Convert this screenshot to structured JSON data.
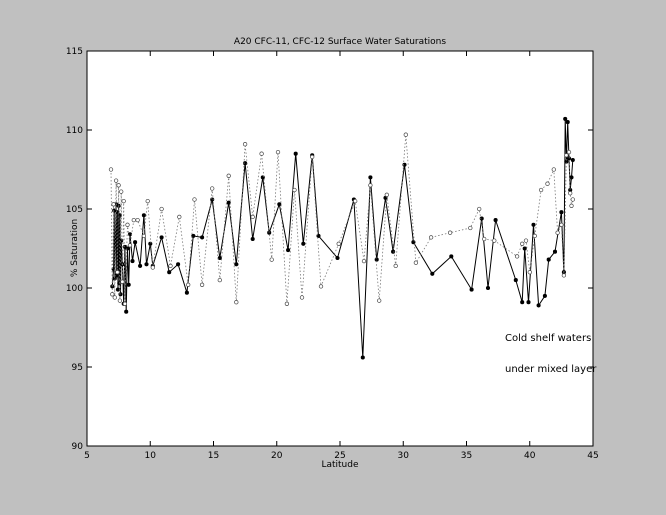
{
  "chart_data": {
    "type": "line",
    "title": "A20 CFC-11, CFC-12 Surface Water Saturations",
    "xlabel": "Latitude",
    "ylabel": "% Saturation",
    "xlim": [
      5,
      45
    ],
    "ylim": [
      90,
      115
    ],
    "xticks": [
      5,
      10,
      15,
      20,
      25,
      30,
      35,
      40,
      45
    ],
    "yticks": [
      90,
      95,
      100,
      105,
      110,
      115
    ],
    "grid": false,
    "annotations": [
      "Cold shelf waters",
      "under mixed layer"
    ],
    "colors": {
      "background": "#c0c0c0",
      "plot_area": "#ffffff",
      "series_cfc11": "#000000",
      "series_cfc12": "#777777"
    },
    "series": [
      {
        "style": "solid-filled-dots",
        "points": [
          [
            7.0,
            100.1
          ],
          [
            7.1,
            101.2
          ],
          [
            7.15,
            104.9
          ],
          [
            7.2,
            100.6
          ],
          [
            7.3,
            105.3
          ],
          [
            7.35,
            100.8
          ],
          [
            7.4,
            104.8
          ],
          [
            7.45,
            99.9
          ],
          [
            7.5,
            105.2
          ],
          [
            7.55,
            100.3
          ],
          [
            7.6,
            104.6
          ],
          [
            7.65,
            99.6
          ],
          [
            7.7,
            103.0
          ],
          [
            7.8,
            101.5
          ],
          [
            7.9,
            99.0
          ],
          [
            8.0,
            102.6
          ],
          [
            8.1,
            98.5
          ],
          [
            8.2,
            102.5
          ],
          [
            8.3,
            100.2
          ],
          [
            8.4,
            103.4
          ],
          [
            8.6,
            101.7
          ],
          [
            8.8,
            102.9
          ],
          [
            9.2,
            101.4
          ],
          [
            9.5,
            104.6
          ],
          [
            9.7,
            101.5
          ],
          [
            10.0,
            102.8
          ],
          [
            10.2,
            101.4
          ],
          [
            10.9,
            103.2
          ],
          [
            11.5,
            101.0
          ],
          [
            12.2,
            101.5
          ],
          [
            12.9,
            99.7
          ],
          [
            13.4,
            103.3
          ],
          [
            14.1,
            103.2
          ],
          [
            14.9,
            105.6
          ],
          [
            15.5,
            101.9
          ],
          [
            16.2,
            105.4
          ],
          [
            16.8,
            101.5
          ],
          [
            17.5,
            107.9
          ],
          [
            18.1,
            103.1
          ],
          [
            18.9,
            107.0
          ],
          [
            19.4,
            103.5
          ],
          [
            20.2,
            105.3
          ],
          [
            20.9,
            102.4
          ],
          [
            21.5,
            108.5
          ],
          [
            22.1,
            102.8
          ],
          [
            22.8,
            108.4
          ],
          [
            23.3,
            103.3
          ],
          [
            24.8,
            101.9
          ],
          [
            26.1,
            105.6
          ],
          [
            26.8,
            95.6
          ],
          [
            27.4,
            107.0
          ],
          [
            27.9,
            101.8
          ],
          [
            28.6,
            105.7
          ],
          [
            29.2,
            102.3
          ],
          [
            30.1,
            107.8
          ],
          [
            30.8,
            102.9
          ],
          [
            32.3,
            100.9
          ],
          [
            33.8,
            102.0
          ],
          [
            35.4,
            99.9
          ],
          [
            36.2,
            104.4
          ],
          [
            36.7,
            100.0
          ],
          [
            37.3,
            104.3
          ],
          [
            38.9,
            100.5
          ],
          [
            39.4,
            99.1
          ],
          [
            39.6,
            102.5
          ],
          [
            39.9,
            99.1
          ],
          [
            40.3,
            104.0
          ],
          [
            40.7,
            98.9
          ],
          [
            41.2,
            99.5
          ],
          [
            41.5,
            101.8
          ],
          [
            42.0,
            102.3
          ],
          [
            42.5,
            104.8
          ],
          [
            42.7,
            101.0
          ],
          [
            42.8,
            110.7
          ],
          [
            42.9,
            108.0
          ],
          [
            43.0,
            110.5
          ],
          [
            43.1,
            108.2
          ],
          [
            43.2,
            106.2
          ],
          [
            43.3,
            107.0
          ],
          [
            43.4,
            108.1
          ]
        ]
      },
      {
        "style": "dotted-open-circles",
        "points": [
          [
            6.9,
            107.5
          ],
          [
            7.0,
            99.6
          ],
          [
            7.1,
            105.3
          ],
          [
            7.2,
            99.4
          ],
          [
            7.3,
            106.8
          ],
          [
            7.4,
            101.0
          ],
          [
            7.5,
            106.5
          ],
          [
            7.6,
            99.2
          ],
          [
            7.7,
            106.1
          ],
          [
            7.8,
            100.4
          ],
          [
            7.9,
            105.5
          ],
          [
            8.0,
            99.0
          ],
          [
            8.2,
            104.0
          ],
          [
            8.4,
            102.7
          ],
          [
            8.7,
            104.3
          ],
          [
            9.0,
            104.3
          ],
          [
            9.5,
            103.3
          ],
          [
            9.8,
            105.5
          ],
          [
            10.2,
            101.3
          ],
          [
            10.9,
            105.0
          ],
          [
            11.6,
            101.4
          ],
          [
            12.3,
            104.5
          ],
          [
            13.0,
            100.2
          ],
          [
            13.5,
            105.6
          ],
          [
            14.1,
            100.2
          ],
          [
            14.9,
            106.3
          ],
          [
            15.5,
            100.5
          ],
          [
            16.2,
            107.1
          ],
          [
            16.8,
            99.1
          ],
          [
            17.5,
            109.1
          ],
          [
            18.1,
            104.5
          ],
          [
            18.8,
            108.5
          ],
          [
            19.6,
            101.8
          ],
          [
            20.1,
            108.6
          ],
          [
            20.8,
            99.0
          ],
          [
            21.4,
            106.2
          ],
          [
            22.0,
            99.4
          ],
          [
            22.8,
            108.3
          ],
          [
            23.5,
            100.1
          ],
          [
            24.9,
            102.8
          ],
          [
            26.2,
            105.5
          ],
          [
            26.9,
            101.7
          ],
          [
            27.4,
            106.5
          ],
          [
            28.1,
            99.2
          ],
          [
            28.7,
            105.9
          ],
          [
            29.4,
            101.4
          ],
          [
            30.2,
            109.7
          ],
          [
            31.0,
            101.6
          ],
          [
            32.2,
            103.2
          ],
          [
            33.7,
            103.5
          ],
          [
            35.3,
            103.8
          ],
          [
            36.0,
            105.0
          ],
          [
            36.4,
            103.1
          ],
          [
            37.2,
            103.0
          ],
          [
            39.0,
            102.0
          ],
          [
            39.4,
            102.8
          ],
          [
            39.7,
            103.0
          ],
          [
            40.0,
            101.0
          ],
          [
            40.4,
            103.3
          ],
          [
            40.9,
            106.2
          ],
          [
            41.4,
            106.6
          ],
          [
            41.9,
            107.5
          ],
          [
            42.2,
            103.5
          ],
          [
            42.5,
            104.0
          ],
          [
            42.7,
            100.8
          ],
          [
            42.9,
            108.4
          ],
          [
            43.1,
            108.6
          ],
          [
            43.2,
            106.0
          ],
          [
            43.3,
            105.2
          ],
          [
            43.4,
            105.6
          ]
        ]
      }
    ]
  }
}
